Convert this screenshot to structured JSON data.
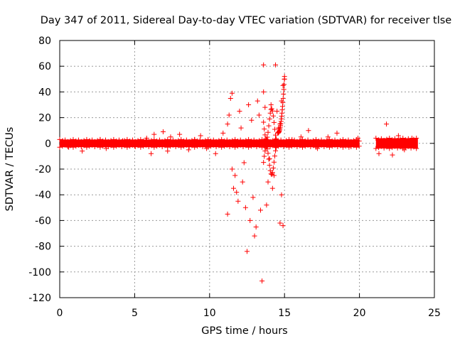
{
  "chart_data": {
    "type": "scatter",
    "title": "Day 347 of 2011, Sidereal Day-to-day VTEC variation (SDTVAR) for receiver tlse",
    "xlabel": "GPS time / hours",
    "ylabel": "SDTVAR / TECUs",
    "xlim": [
      0,
      25
    ],
    "ylim": [
      -120,
      80
    ],
    "x_ticks": [
      0,
      5,
      10,
      15,
      20,
      25
    ],
    "y_ticks": [
      -120,
      -100,
      -80,
      -60,
      -40,
      -20,
      0,
      20,
      40,
      60,
      80
    ],
    "grid": true,
    "marker": "+",
    "color": "#ff0000",
    "gaps": [
      [
        20.0,
        21.1
      ]
    ],
    "series": [
      {
        "name": "SDTVAR",
        "points": [
          [
            0.2,
            2
          ],
          [
            0.6,
            -3
          ],
          [
            1.1,
            1
          ],
          [
            1.5,
            -6
          ],
          [
            2.0,
            2
          ],
          [
            2.7,
            3
          ],
          [
            3.1,
            -4
          ],
          [
            3.4,
            1
          ],
          [
            4.2,
            2
          ],
          [
            5.0,
            -2
          ],
          [
            5.8,
            4
          ],
          [
            6.1,
            -8
          ],
          [
            6.3,
            7
          ],
          [
            6.9,
            9
          ],
          [
            7.2,
            -6
          ],
          [
            7.4,
            5
          ],
          [
            8.0,
            7
          ],
          [
            8.6,
            -5
          ],
          [
            9.0,
            3
          ],
          [
            9.4,
            6
          ],
          [
            9.8,
            -4
          ],
          [
            10.4,
            -8
          ],
          [
            10.9,
            8
          ],
          [
            11.2,
            15
          ],
          [
            11.3,
            22
          ],
          [
            11.4,
            35
          ],
          [
            11.5,
            39
          ],
          [
            11.5,
            -20
          ],
          [
            11.6,
            -35
          ],
          [
            11.7,
            -25
          ],
          [
            11.2,
            -55
          ],
          [
            11.8,
            -38
          ],
          [
            11.9,
            -45
          ],
          [
            12.0,
            25
          ],
          [
            12.1,
            12
          ],
          [
            12.2,
            -30
          ],
          [
            12.3,
            -15
          ],
          [
            12.4,
            -50
          ],
          [
            12.5,
            -84
          ],
          [
            12.6,
            30
          ],
          [
            12.7,
            -60
          ],
          [
            12.8,
            18
          ],
          [
            12.9,
            -42
          ],
          [
            13.0,
            -72
          ],
          [
            13.1,
            -65
          ],
          [
            13.2,
            33
          ],
          [
            13.3,
            22
          ],
          [
            13.4,
            -52
          ],
          [
            13.5,
            -107
          ],
          [
            13.6,
            61
          ],
          [
            13.6,
            40
          ],
          [
            13.7,
            28
          ],
          [
            13.8,
            -48
          ],
          [
            13.9,
            -30
          ],
          [
            14.0,
            -12
          ],
          [
            14.1,
            30
          ],
          [
            14.2,
            -35
          ],
          [
            14.3,
            -25
          ],
          [
            14.4,
            61
          ],
          [
            14.5,
            25
          ],
          [
            14.6,
            12
          ],
          [
            14.7,
            -62
          ],
          [
            14.8,
            -40
          ],
          [
            14.9,
            -64
          ],
          [
            14.7,
            15
          ],
          [
            14.8,
            33
          ],
          [
            14.9,
            45
          ],
          [
            15.0,
            50
          ],
          [
            15.0,
            52
          ],
          [
            15.5,
            3
          ],
          [
            16.1,
            5
          ],
          [
            16.6,
            10
          ],
          [
            17.2,
            -4
          ],
          [
            17.9,
            5
          ],
          [
            18.5,
            8
          ],
          [
            19.3,
            -3
          ],
          [
            19.9,
            4
          ],
          [
            21.3,
            -8
          ],
          [
            21.8,
            15
          ],
          [
            22.2,
            -9
          ],
          [
            22.6,
            6
          ],
          [
            23.0,
            -5
          ],
          [
            23.5,
            4
          ]
        ],
        "bands": [
          {
            "x_start": 0.0,
            "x_end": 20.0,
            "y_min": -3,
            "y_max": 3
          },
          {
            "x_start": 21.1,
            "x_end": 23.9,
            "y_min": -4,
            "y_max": 4
          }
        ]
      }
    ]
  }
}
